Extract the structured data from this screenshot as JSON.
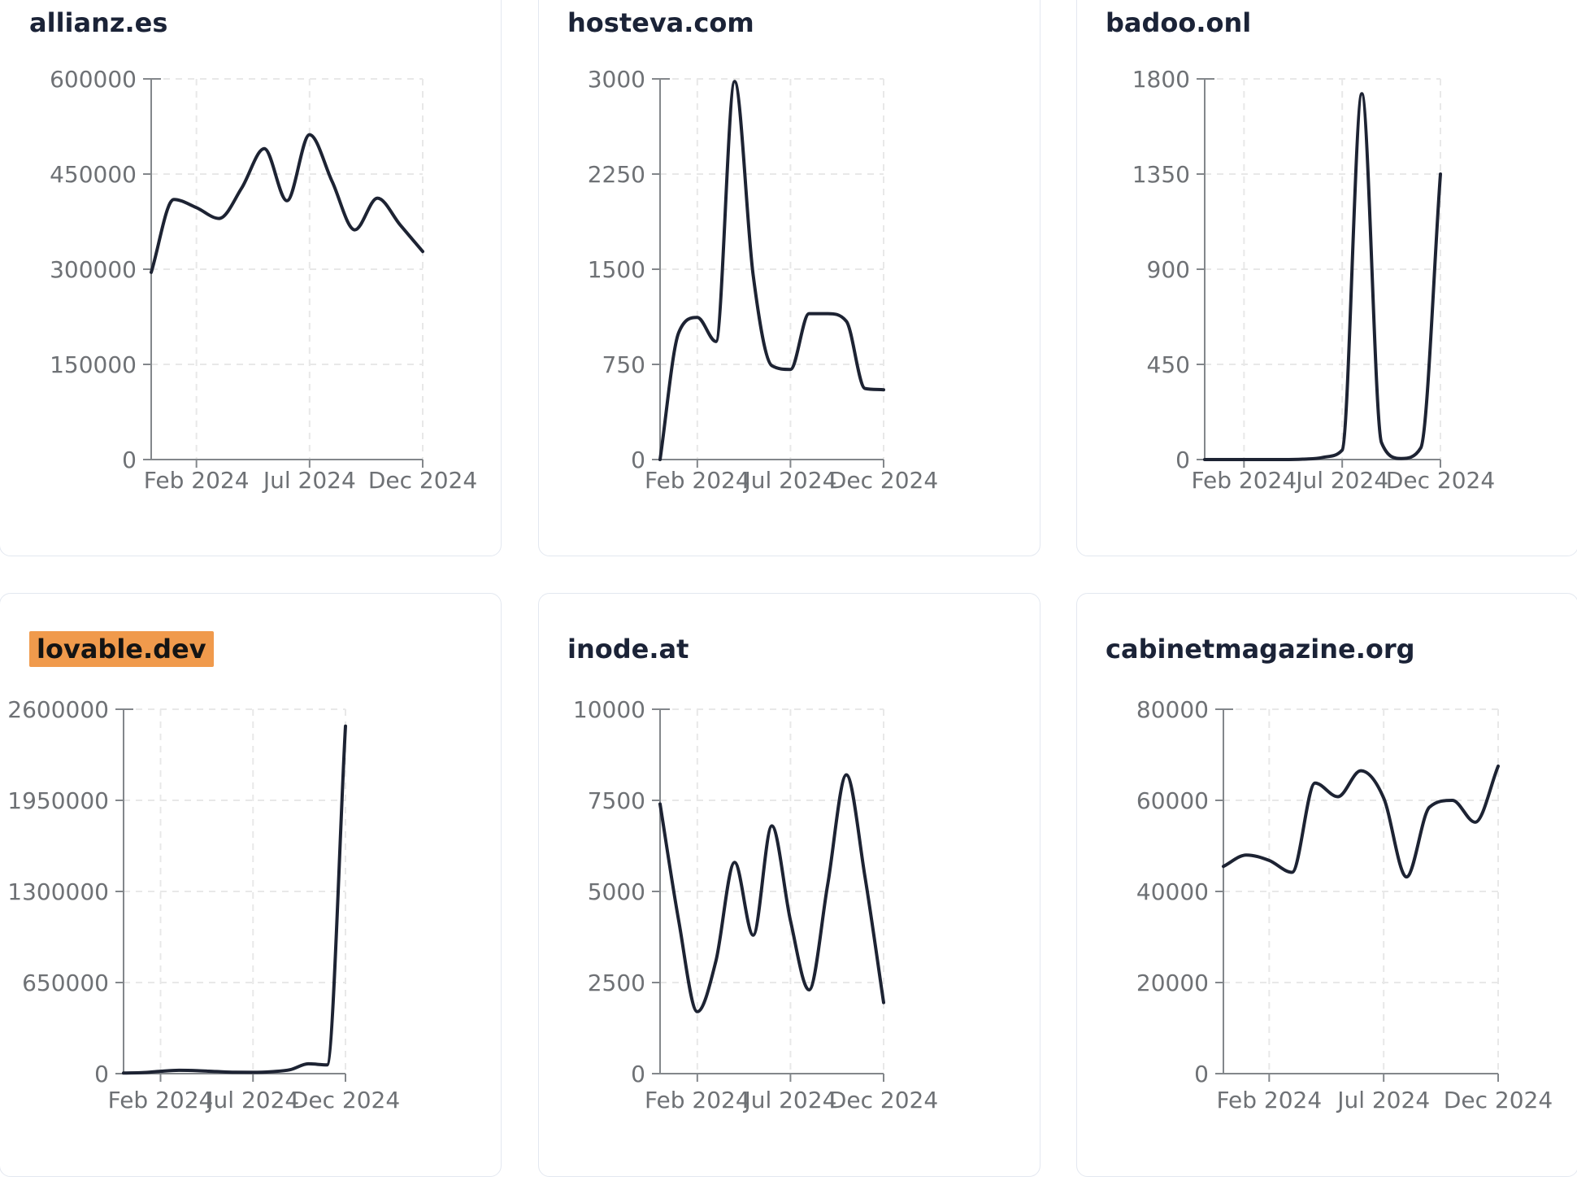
{
  "theme": {
    "page_bg": "#ffffff",
    "card_bg": "#ffffff",
    "card_border": "#e3e8f0",
    "title_color": "#1b2337",
    "line_color": "#1d2333",
    "axis_color": "#83878b",
    "tick_label_color": "#6e7175",
    "grid_color": "#e8e8e8",
    "highlight_bg": "#f09a4c",
    "highlight_text": "#141414"
  },
  "chart_data": [
    {
      "type": "line",
      "title": "allianz.es",
      "highlighted": false,
      "xlabel": "",
      "ylabel": "",
      "x": [
        "Dec 2023",
        "Jan 2024",
        "Feb 2024",
        "Mar 2024",
        "Apr 2024",
        "May 2024",
        "Jun 2024",
        "Jul 2024",
        "Aug 2024",
        "Sep 2024",
        "Oct 2024",
        "Nov 2024",
        "Dec 2024"
      ],
      "values": [
        295000,
        410000,
        397000,
        380000,
        428000,
        490000,
        408000,
        512000,
        438000,
        362000,
        412000,
        370000,
        328000
      ],
      "ylim": [
        0,
        600000
      ],
      "yticks": [
        0,
        150000,
        300000,
        450000,
        600000
      ],
      "xtick_labels": [
        "Feb 2024",
        "Jul 2024",
        "Dec 2024"
      ],
      "grid": true,
      "legend": "none"
    },
    {
      "type": "line",
      "title": "hosteva.com",
      "highlighted": false,
      "xlabel": "",
      "ylabel": "",
      "x": [
        "Dec 2023",
        "Jan 2024",
        "Feb 2024",
        "Mar 2024",
        "Apr 2024",
        "May 2024",
        "Jun 2024",
        "Jul 2024",
        "Aug 2024",
        "Sep 2024",
        "Oct 2024",
        "Nov 2024",
        "Dec 2024"
      ],
      "values": [
        0,
        1000,
        1120,
        930,
        2980,
        1450,
        740,
        710,
        1150,
        1150,
        1090,
        560,
        550
      ],
      "ylim": [
        0,
        3000
      ],
      "yticks": [
        0,
        750,
        1500,
        2250,
        3000
      ],
      "xtick_labels": [
        "Feb 2024",
        "Jul 2024",
        "Dec 2024"
      ],
      "grid": true,
      "legend": "none"
    },
    {
      "type": "line",
      "title": "badoo.onl",
      "highlighted": false,
      "xlabel": "",
      "ylabel": "",
      "x": [
        "Dec 2023",
        "Jan 2024",
        "Feb 2024",
        "Mar 2024",
        "Apr 2024",
        "May 2024",
        "Jun 2024",
        "Jul 2024",
        "Aug 2024",
        "Sep 2024",
        "Oct 2024",
        "Nov 2024",
        "Dec 2024"
      ],
      "values": [
        0,
        0,
        0,
        0,
        0,
        2,
        10,
        45,
        1730,
        80,
        5,
        55,
        1350
      ],
      "ylim": [
        0,
        1800
      ],
      "yticks": [
        0,
        450,
        900,
        1350,
        1800
      ],
      "xtick_labels": [
        "Feb 2024",
        "Jul 2024",
        "Dec 2024"
      ],
      "grid": true,
      "legend": "none"
    },
    {
      "type": "line",
      "title": "lovable.dev",
      "highlighted": true,
      "xlabel": "",
      "ylabel": "",
      "x": [
        "Dec 2023",
        "Jan 2024",
        "Feb 2024",
        "Mar 2024",
        "Apr 2024",
        "May 2024",
        "Jun 2024",
        "Jul 2024",
        "Aug 2024",
        "Sep 2024",
        "Oct 2024",
        "Nov 2024",
        "Dec 2024"
      ],
      "values": [
        4000,
        7000,
        17000,
        24000,
        21000,
        15000,
        10000,
        9000,
        14000,
        28000,
        70000,
        62000,
        2480000
      ],
      "ylim": [
        0,
        2600000
      ],
      "yticks": [
        0,
        650000,
        1300000,
        1950000,
        2600000
      ],
      "xtick_labels": [
        "Feb 2024",
        "Jul 2024",
        "Dec 2024"
      ],
      "grid": true,
      "legend": "none"
    },
    {
      "type": "line",
      "title": "inode.at",
      "highlighted": false,
      "xlabel": "",
      "ylabel": "",
      "x": [
        "Dec 2023",
        "Jan 2024",
        "Feb 2024",
        "Mar 2024",
        "Apr 2024",
        "May 2024",
        "Jun 2024",
        "Jul 2024",
        "Aug 2024",
        "Sep 2024",
        "Oct 2024",
        "Nov 2024",
        "Dec 2024"
      ],
      "values": [
        7400,
        4200,
        1700,
        3100,
        5800,
        3800,
        6800,
        4200,
        2300,
        5200,
        8200,
        5400,
        1950
      ],
      "ylim": [
        0,
        10000
      ],
      "yticks": [
        0,
        2500,
        5000,
        7500,
        10000
      ],
      "xtick_labels": [
        "Feb 2024",
        "Jul 2024",
        "Dec 2024"
      ],
      "grid": true,
      "legend": "none"
    },
    {
      "type": "line",
      "title": "cabinetmagazine.org",
      "highlighted": false,
      "xlabel": "",
      "ylabel": "",
      "x": [
        "Dec 2023",
        "Jan 2024",
        "Feb 2024",
        "Mar 2024",
        "Apr 2024",
        "May 2024",
        "Jun 2024",
        "Jul 2024",
        "Aug 2024",
        "Sep 2024",
        "Oct 2024",
        "Nov 2024",
        "Dec 2024"
      ],
      "values": [
        45500,
        48000,
        46800,
        44200,
        63800,
        60800,
        66500,
        60500,
        43200,
        58500,
        60000,
        55200,
        67500
      ],
      "ylim": [
        0,
        80000
      ],
      "yticks": [
        0,
        20000,
        40000,
        60000,
        80000
      ],
      "xtick_labels": [
        "Feb 2024",
        "Jul 2024",
        "Dec 2024"
      ],
      "grid": true,
      "legend": "none"
    }
  ]
}
